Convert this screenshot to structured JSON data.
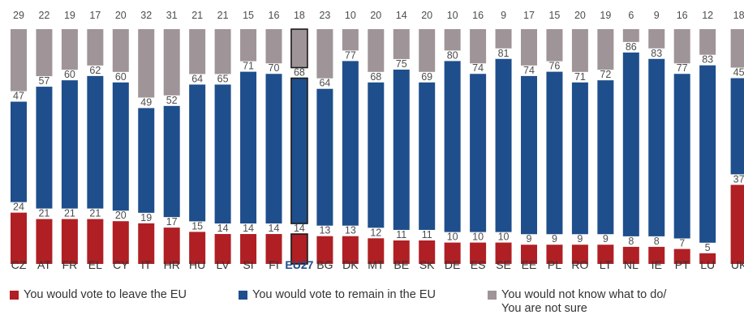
{
  "chart_data": {
    "type": "bar",
    "stacked": true,
    "orientation": "vertical",
    "categories": [
      "CZ",
      "AT",
      "FR",
      "EL",
      "CY",
      "IT",
      "HR",
      "HU",
      "LV",
      "SI",
      "FI",
      "EU27",
      "BG",
      "DK",
      "MT",
      "BE",
      "SK",
      "DE",
      "ES",
      "SE",
      "EE",
      "PL",
      "RO",
      "LT",
      "NL",
      "IE",
      "PT",
      "LU",
      "UK"
    ],
    "highlight_category": "EU27",
    "series": [
      {
        "name": "You would vote to leave the EU",
        "color": "#b01f24",
        "values": [
          24,
          21,
          21,
          21,
          20,
          19,
          17,
          15,
          14,
          14,
          14,
          14,
          13,
          13,
          12,
          11,
          11,
          10,
          10,
          10,
          9,
          9,
          9,
          9,
          8,
          8,
          7,
          5,
          37
        ]
      },
      {
        "name": "You would vote to remain in the EU",
        "color": "#1f4e8c",
        "values": [
          47,
          57,
          60,
          62,
          60,
          49,
          52,
          64,
          65,
          71,
          70,
          68,
          64,
          77,
          68,
          75,
          69,
          80,
          74,
          81,
          74,
          76,
          71,
          72,
          86,
          83,
          77,
          83,
          45
        ]
      },
      {
        "name": "You would not know what to do/ You are not sure",
        "color": "#9f9497",
        "values": [
          29,
          22,
          19,
          17,
          20,
          32,
          31,
          21,
          21,
          15,
          16,
          18,
          23,
          10,
          20,
          14,
          20,
          10,
          16,
          9,
          17,
          15,
          20,
          19,
          6,
          9,
          16,
          12,
          18
        ]
      }
    ],
    "data_labels": true,
    "ylim": [
      0,
      100
    ],
    "grid": false,
    "legend_position": "bottom"
  },
  "legend": {
    "leave": "You would vote to leave the EU",
    "remain": "You would vote to remain in the EU",
    "dontknow": "You would not know what to do/ You are not sure"
  }
}
